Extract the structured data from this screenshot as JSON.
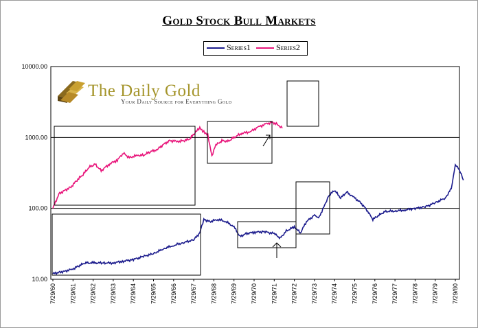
{
  "chart_data": {
    "type": "line",
    "title": "Gold Stock Bull Markets",
    "y_scale": "log",
    "ylim": [
      10,
      10000
    ],
    "y_ticks": [
      10,
      100,
      1000,
      10000
    ],
    "y_tick_labels": [
      "10.00",
      "100.00",
      "1000.00",
      "10000.00"
    ],
    "categories": [
      "7/29/60",
      "7/29/61",
      "7/29/62",
      "7/29/63",
      "7/29/64",
      "7/29/65",
      "7/29/66",
      "7/29/67",
      "7/29/68",
      "7/29/69",
      "7/29/70",
      "7/29/71",
      "7/29/72",
      "7/29/73",
      "7/29/74",
      "7/29/75",
      "7/29/76",
      "7/29/77",
      "7/29/78",
      "7/29/79",
      "7/29/80"
    ],
    "legend": [
      "Series1",
      "Series2"
    ],
    "series": [
      {
        "name": "Series1",
        "color": "#1a1a8c",
        "x": [
          0,
          0.3,
          0.6,
          1.0,
          1.3,
          1.6,
          2.0,
          2.5,
          3.0,
          3.5,
          4.0,
          4.5,
          5.0,
          5.5,
          6.0,
          6.5,
          7.0,
          7.3,
          7.5,
          7.8,
          8.2,
          8.6,
          9.0,
          9.3,
          9.6,
          10.0,
          10.5,
          11.0,
          11.3,
          11.6,
          12.0,
          12.3,
          12.6,
          13.0,
          13.2,
          13.5,
          13.7,
          14.0,
          14.3,
          14.6,
          15.0,
          15.3,
          15.6,
          15.9,
          16.2,
          16.5,
          17.0,
          17.5,
          18.0,
          18.5,
          19.0,
          19.5,
          19.8,
          20.0,
          20.2,
          20.4
        ],
        "values": [
          12,
          12.5,
          13,
          14,
          15.5,
          17,
          17,
          17,
          17,
          18,
          19,
          21,
          23,
          27,
          30,
          33,
          36,
          45,
          70,
          65,
          70,
          65,
          55,
          40,
          44,
          46,
          47,
          44,
          38,
          48,
          55,
          45,
          65,
          80,
          72,
          110,
          150,
          180,
          140,
          170,
          140,
          120,
          95,
          70,
          80,
          90,
          92,
          95,
          100,
          105,
          120,
          140,
          190,
          420,
          350,
          250
        ]
      },
      {
        "name": "Series2",
        "color": "#e8147a",
        "x": [
          0,
          0.3,
          0.6,
          0.9,
          1.2,
          1.5,
          1.8,
          2.1,
          2.4,
          2.8,
          3.2,
          3.5,
          3.8,
          4.2,
          4.5,
          4.8,
          5.2,
          5.5,
          5.8,
          6.2,
          6.5,
          6.8,
          7.1,
          7.3,
          7.5,
          7.7,
          7.9,
          8.1,
          8.4,
          8.7,
          9.0,
          9.4,
          9.8,
          10.2,
          10.6,
          10.9,
          11.2,
          11.4
        ],
        "values": [
          100,
          160,
          180,
          200,
          250,
          300,
          380,
          420,
          340,
          420,
          480,
          600,
          520,
          560,
          560,
          620,
          680,
          800,
          900,
          880,
          900,
          950,
          1200,
          1350,
          1200,
          1100,
          550,
          780,
          900,
          880,
          1000,
          1150,
          1200,
          1400,
          1550,
          1650,
          1500,
          1350
        ]
      }
    ],
    "annotations": {
      "logo_title": "The Daily Gold",
      "logo_subtitle": "Your Daily Source for Everything Gold"
    }
  }
}
